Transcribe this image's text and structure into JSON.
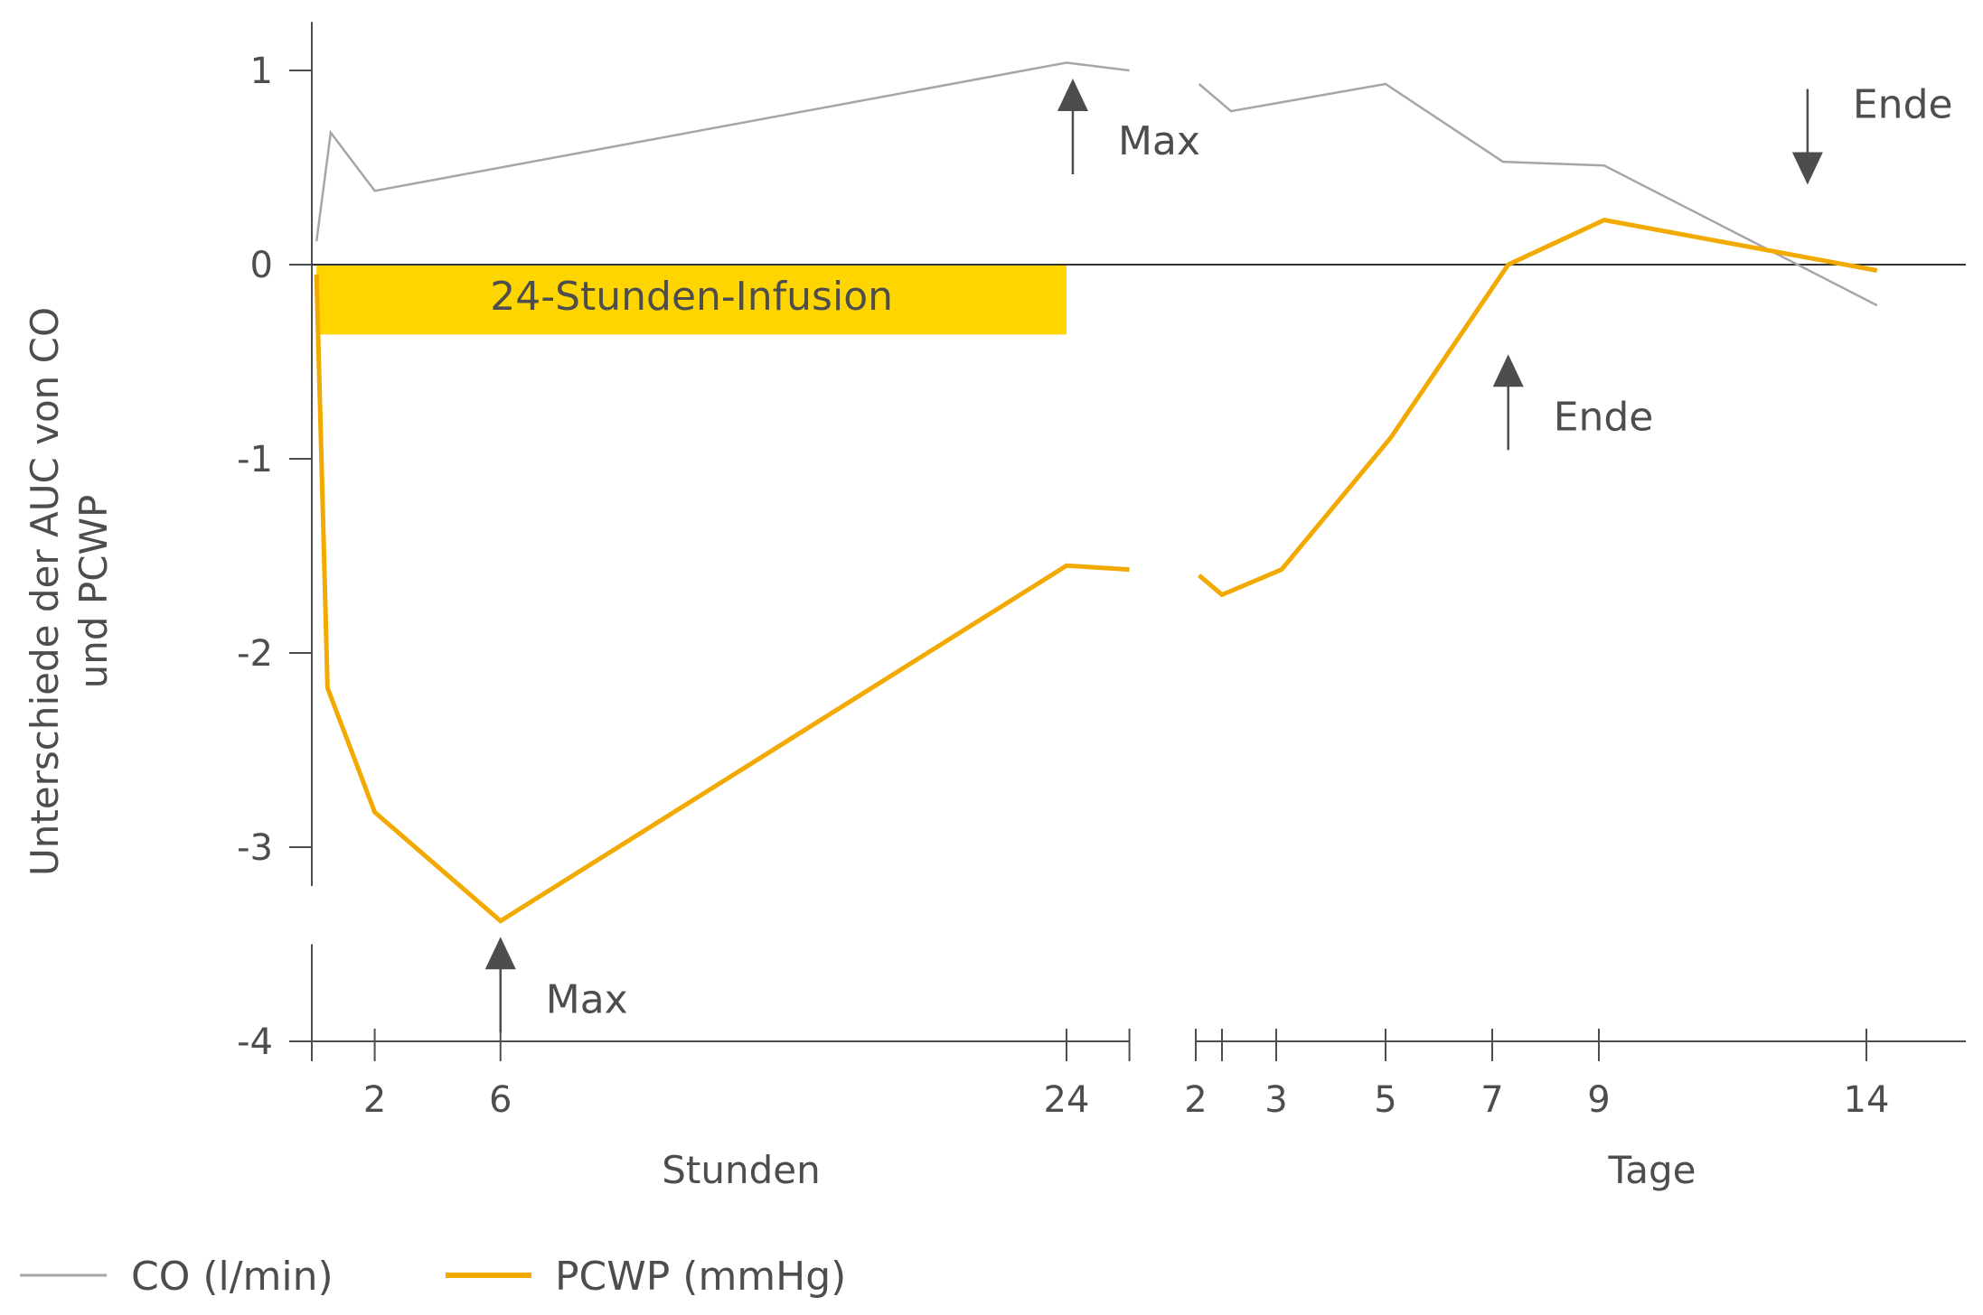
{
  "chart_data": {
    "type": "line",
    "title": "",
    "ylabel": "Unterschiede der AUC von CO und PCWP",
    "ylim": [
      -4,
      1.25
    ],
    "y_ticks": [
      1,
      0,
      -1,
      -2,
      -3,
      -4
    ],
    "y_tick_labels": [
      "1",
      "0",
      "-1",
      "-2",
      "-3",
      "-4"
    ],
    "panels": [
      {
        "name": "hours",
        "xlabel": "Stunden",
        "xlim": [
          0,
          26.3
        ],
        "x_ticks": [
          0,
          2,
          6,
          24,
          26
        ],
        "x_tick_labels": [
          "",
          "2",
          "6",
          "24",
          ""
        ]
      },
      {
        "name": "days",
        "xlabel": "Tage",
        "xlim": [
          1.8,
          16.5
        ],
        "x_ticks": [
          2,
          2.4,
          3,
          5,
          7,
          9,
          14
        ],
        "x_tick_labels": [
          "2",
          "",
          "3",
          "5",
          "7",
          "9",
          "14"
        ]
      }
    ],
    "series": [
      {
        "name": "CO (l/min)",
        "color": "#a6a6a6",
        "hours": {
          "x": [
            0.15,
            0.6,
            2,
            24,
            26
          ],
          "y": [
            0.12,
            0.68,
            0.38,
            1.04,
            1.0
          ]
        },
        "days": {
          "x": [
            2.05,
            2.5,
            5.0,
            7.2,
            9.1,
            14.2
          ],
          "y": [
            0.93,
            0.79,
            0.93,
            0.53,
            0.51,
            -0.21
          ]
        }
      },
      {
        "name": "PCWP (mmHg)",
        "color": "#f2a900",
        "hours": {
          "x": [
            0.15,
            0.5,
            2,
            6,
            24,
            26
          ],
          "y": [
            -0.05,
            -2.18,
            -2.82,
            -3.38,
            -1.55,
            -1.57
          ]
        },
        "days": {
          "x": [
            2.05,
            2.4,
            3.1,
            5.1,
            7.3,
            9.1,
            14.2
          ],
          "y": [
            -1.6,
            -1.7,
            -1.57,
            -0.89,
            0.0,
            0.23,
            -0.03
          ]
        }
      }
    ],
    "infusion_band": {
      "label": "24-Stunden-Infusion",
      "x": [
        0.15,
        24
      ],
      "y": [
        -0.36,
        0
      ],
      "color": "#ffd500"
    },
    "annotations": [
      {
        "text": "Max",
        "panel": "hours",
        "x": 6,
        "y": -3.62,
        "direction": "up"
      },
      {
        "text": "Max",
        "panel": "hours",
        "x": 24.2,
        "y": 0.8,
        "direction": "up"
      },
      {
        "text": "Ende",
        "panel": "days",
        "x": 7.3,
        "y": -0.62,
        "direction": "up"
      },
      {
        "text": "Ende",
        "panel": "days",
        "x": 12.9,
        "y": 0.57,
        "direction": "down"
      }
    ],
    "legend": {
      "position": "bottom-left"
    }
  }
}
